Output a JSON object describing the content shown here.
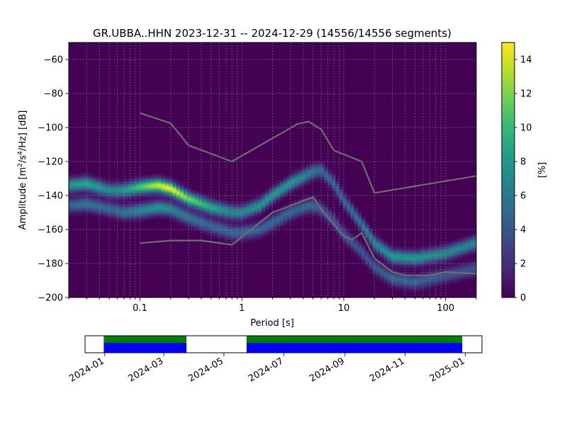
{
  "chart_data": [
    {
      "type": "heatmap",
      "subtype": "probabilistic-psd",
      "title": "GR.UBBA..HHN   2023-12-31 -- 2024-12-29  (14556/14556 segments)",
      "xlabel": "Period [s]",
      "ylabel_parts": {
        "pre": "Amplitude [m",
        "sup1": "2",
        "mid": "/s",
        "sup2": "4",
        "post": "/Hz] [dB]"
      },
      "x_scale": "log",
      "xlim": [
        0.02,
        200
      ],
      "ylim": [
        -200,
        -50
      ],
      "x_ticks": [
        0.1,
        1,
        10,
        100
      ],
      "x_tick_labels": [
        "0.1",
        "1",
        "10",
        "100"
      ],
      "y_ticks": [
        -60,
        -80,
        -100,
        -120,
        -140,
        -160,
        -180,
        -200
      ],
      "y_tick_labels": [
        "−60",
        "−80",
        "−100",
        "−120",
        "−140",
        "−160",
        "−180",
        "−200"
      ],
      "grid": true,
      "colormap": "viridis",
      "colorbar": {
        "label": "[%]",
        "range": [
          0,
          15
        ],
        "ticks": [
          0,
          2,
          4,
          6,
          8,
          10,
          12,
          14
        ],
        "tick_labels": [
          "0",
          "2",
          "4",
          "6",
          "8",
          "10",
          "12",
          "14"
        ]
      },
      "density_bands": [
        {
          "period": [
            0.02,
            0.03,
            0.05,
            0.07,
            0.1,
            0.15,
            0.2,
            0.3,
            0.5,
            0.8,
            1,
            1.5,
            2,
            3,
            4,
            5,
            6,
            8,
            10,
            15,
            20,
            30,
            50,
            100,
            200
          ],
          "amplitude": [
            -134,
            -133,
            -137,
            -137,
            -135,
            -134,
            -136,
            -142,
            -147,
            -150,
            -150,
            -146,
            -140,
            -133,
            -129,
            -126,
            -125,
            -133,
            -143,
            -157,
            -168,
            -176,
            -177,
            -174,
            -168
          ],
          "peak_percent": [
            8,
            9,
            7,
            8,
            11,
            14,
            15,
            12,
            9,
            7,
            7,
            8,
            8,
            8,
            7,
            6,
            5,
            5,
            5,
            6,
            7,
            8,
            8,
            7,
            7
          ]
        },
        {
          "period": [
            0.02,
            0.03,
            0.05,
            0.07,
            0.1,
            0.15,
            0.2,
            0.3,
            0.5,
            0.8,
            1,
            1.5,
            2,
            3,
            4,
            5,
            6,
            8,
            10,
            15,
            20,
            30,
            50,
            100,
            200
          ],
          "amplitude": [
            -146,
            -145,
            -148,
            -150,
            -149,
            -147,
            -148,
            -153,
            -158,
            -162,
            -162,
            -160,
            -156,
            -150,
            -147,
            -146,
            -148,
            -155,
            -163,
            -173,
            -182,
            -189,
            -191,
            -187,
            -183
          ],
          "peak_percent": [
            5,
            6,
            5,
            6,
            7,
            8,
            7,
            6,
            5,
            5,
            5,
            5,
            5,
            5,
            5,
            5,
            4,
            4,
            4,
            4,
            4,
            5,
            5,
            4,
            4
          ]
        }
      ],
      "series": [
        {
          "x": [
            0.1,
            0.2,
            0.3,
            0.8,
            3.5,
            4.5,
            6,
            8,
            15,
            20,
            200
          ],
          "y": [
            -91.5,
            -97.5,
            -110.5,
            -120,
            -98,
            -96.5,
            -101,
            -113.5,
            -120,
            -138.5,
            -128.5
          ]
        },
        {
          "x": [
            0.1,
            0.2,
            0.4,
            0.8,
            2,
            3,
            4,
            5,
            6,
            8,
            10,
            12,
            15,
            20,
            30,
            40,
            70,
            100,
            200
          ],
          "y": [
            -168,
            -166.5,
            -166.5,
            -169,
            -150,
            -146,
            -143,
            -141,
            -148,
            -157,
            -164,
            -166,
            -162,
            -177,
            -185,
            -187,
            -187,
            -185,
            -186
          ]
        }
      ]
    },
    {
      "type": "timeline",
      "x_tick_labels": [
        "2024-01",
        "2024-03",
        "2024-05",
        "2024-07",
        "2024-09",
        "2024-11",
        "2025-01"
      ],
      "x_ticks": [
        "2024-01-01",
        "2024-03-01",
        "2024-05-01",
        "2024-07-01",
        "2024-09-01",
        "2024-11-01",
        "2025-01-01"
      ],
      "xlim": [
        "2023-12-12",
        "2025-01-18"
      ],
      "coverage_periods": [
        {
          "start": "2023-12-31",
          "end": "2024-03-24"
        },
        {
          "start": "2024-05-24",
          "end": "2024-12-29"
        }
      ],
      "colors": {
        "processed": "#008000",
        "available": "#0000ff"
      }
    }
  ],
  "colors": {
    "viridis": [
      "#440154",
      "#482878",
      "#3e4989",
      "#31688e",
      "#26828e",
      "#1f9e89",
      "#35b779",
      "#6ece58",
      "#b5de2b",
      "#fde725"
    ],
    "noise_model": "#6e6e6e"
  }
}
